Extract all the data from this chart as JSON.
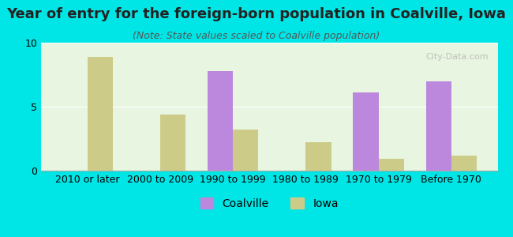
{
  "title": "Year of entry for the foreign-born population in Coalville, Iowa",
  "subtitle": "(Note: State values scaled to Coalville population)",
  "categories": [
    "2010 or later",
    "2000 to 2009",
    "1990 to 1999",
    "1980 to 1989",
    "1970 to 1979",
    "Before 1970"
  ],
  "coalville_values": [
    0,
    0,
    7.8,
    0,
    6.1,
    7.0
  ],
  "iowa_values": [
    8.9,
    4.4,
    3.2,
    2.2,
    0.9,
    1.2
  ],
  "coalville_color": "#bb88dd",
  "iowa_color": "#cccc88",
  "background_outer": "#00e5e5",
  "background_inner": "#e8f5e0",
  "ylim": [
    0,
    10
  ],
  "yticks": [
    0,
    5,
    10
  ],
  "bar_width": 0.35,
  "title_fontsize": 13,
  "subtitle_fontsize": 9,
  "legend_fontsize": 10,
  "axis_fontsize": 9
}
